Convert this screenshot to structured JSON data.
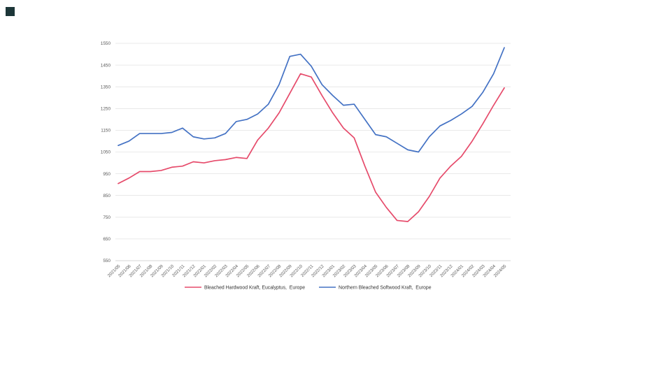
{
  "page": {
    "background": "#ffffff"
  },
  "decoration": {
    "corner_square_color": "#1c3638"
  },
  "chart_data": {
    "type": "line",
    "title": "",
    "xlabel": "",
    "ylabel": "",
    "ylim": [
      550,
      1550
    ],
    "ytick_step": 100,
    "grid": true,
    "legend_position": "bottom",
    "x": [
      "2021/05",
      "2021/06",
      "2021/07",
      "2021/08",
      "2021/09",
      "2021/10",
      "2021/11",
      "2021/12",
      "2022/01",
      "2022/02",
      "2022/03",
      "2022/04",
      "2022/05",
      "2022/06",
      "2022/07",
      "2022/08",
      "2022/09",
      "2022/10",
      "2022/11",
      "2022/12",
      "2023/01",
      "2023/02",
      "2023/03",
      "2023/04",
      "2023/05",
      "2023/06",
      "2023/07",
      "2023/08",
      "2023/09",
      "2023/10",
      "2023/11",
      "2023/12",
      "2024/01",
      "2024/02",
      "2024/03",
      "2024/04",
      "2024/05"
    ],
    "series": [
      {
        "name": "Bleached Hardwood Kraft, Eucalyptus,  Europe",
        "color": "#e64b6b",
        "values": [
          905,
          930,
          960,
          960,
          965,
          980,
          985,
          1005,
          1000,
          1010,
          1015,
          1025,
          1020,
          1105,
          1160,
          1230,
          1320,
          1410,
          1395,
          1310,
          1230,
          1160,
          1115,
          985,
          865,
          795,
          735,
          730,
          775,
          845,
          930,
          985,
          1030,
          1100,
          1180,
          1265,
          1345
        ]
      },
      {
        "name": "Northern Bleached Softwood Kraft,  Europe",
        "color": "#4472c4",
        "values": [
          1080,
          1100,
          1135,
          1135,
          1135,
          1140,
          1160,
          1120,
          1110,
          1115,
          1135,
          1190,
          1200,
          1225,
          1270,
          1360,
          1490,
          1500,
          1445,
          1360,
          1310,
          1265,
          1270,
          1200,
          1130,
          1120,
          1090,
          1060,
          1050,
          1120,
          1170,
          1195,
          1225,
          1260,
          1325,
          1410,
          1530
        ]
      }
    ],
    "axis": {
      "grid_color": "#e3e3e3",
      "baseline_color": "#c6c6c6",
      "tick_color": "#595959"
    }
  }
}
